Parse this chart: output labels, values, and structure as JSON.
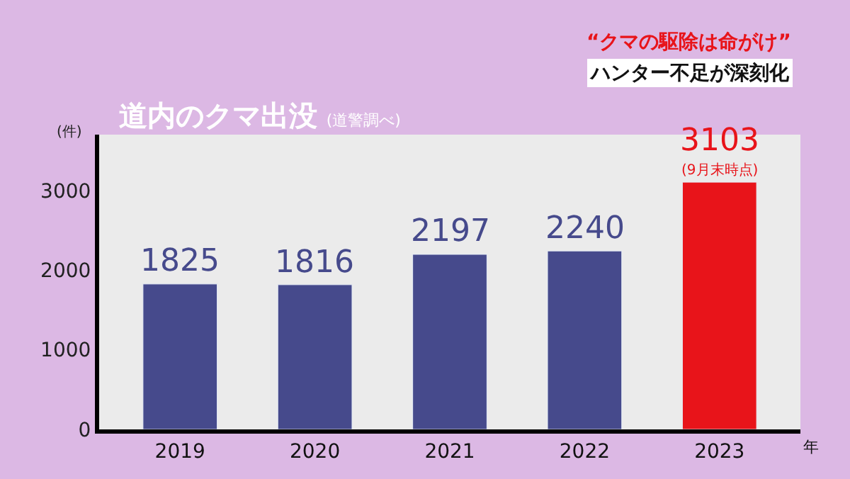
{
  "chart_data": {
    "type": "bar",
    "title": "道内のクマ出没",
    "subtitle": "(道警調べ)",
    "categories": [
      "2019",
      "2020",
      "2021",
      "2022",
      "2023"
    ],
    "xlabel": "年",
    "ylabel": "(件)",
    "values": [
      1825,
      1816,
      2197,
      2240,
      3103
    ],
    "colors": [
      "#464a8c",
      "#464a8c",
      "#464a8c",
      "#464a8c",
      "#e8141a"
    ],
    "data_labels": true,
    "ylim": [
      0,
      3700
    ],
    "yticks": [
      0,
      1000,
      2000,
      3000
    ],
    "grid": false,
    "legend": false,
    "annotations": [
      {
        "text": "(9月末時点)",
        "x": "2023",
        "y": 3103
      },
      "“クマの駆除は命がけ”",
      "ハンター不足が深刻化"
    ]
  }
}
